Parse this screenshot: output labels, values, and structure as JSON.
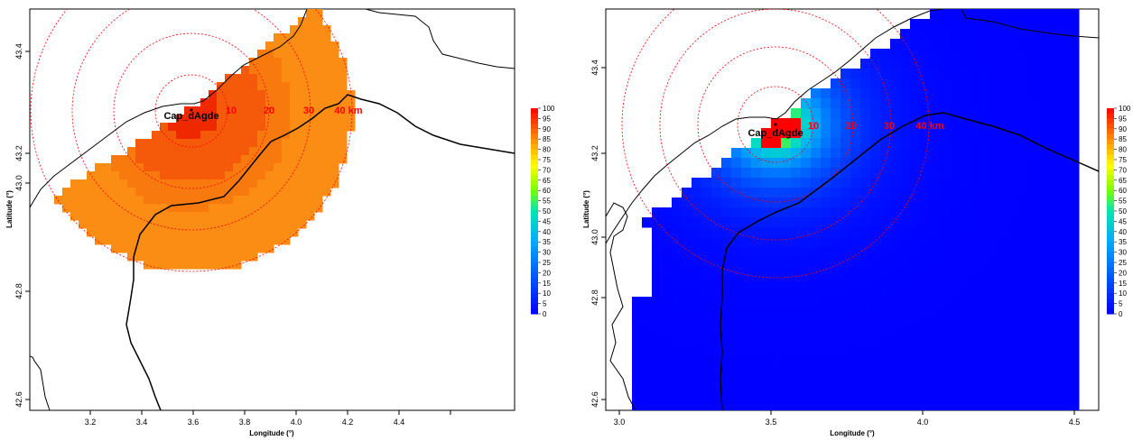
{
  "panels": [
    {
      "id": "left",
      "xlabel": "Longitude (°)",
      "ylabel": "Latitude (°)",
      "xticks": [
        "3.2",
        "3.4",
        "3.6",
        "3.8",
        "4.0",
        "4.2",
        "4.4"
      ],
      "yticks": [
        "42.6",
        "42.8",
        "43.0",
        "43.2",
        "43.4"
      ],
      "site_label": "Cap_dAgde",
      "ring_labels": [
        "10",
        "20",
        "30",
        "40 km"
      ],
      "legend_ticks": [
        "100",
        "95",
        "90",
        "85",
        "80",
        "75",
        "70",
        "65",
        "60",
        "55",
        "50",
        "45",
        "40",
        "35",
        "30",
        "25",
        "20",
        "15",
        "10",
        "5",
        "0"
      ]
    },
    {
      "id": "right",
      "xlabel": "Longitude (°)",
      "ylabel": "Latitude (°)",
      "xticks": [
        "3.0",
        "3.5",
        "4.0",
        "4.5"
      ],
      "yticks": [
        "42.6",
        "42.8",
        "43.0",
        "43.2",
        "43.4"
      ],
      "site_label": "Cap_dAgde",
      "ring_labels": [
        "10",
        "20",
        "30",
        "40 km"
      ],
      "legend_ticks": [
        "100",
        "95",
        "90",
        "85",
        "80",
        "75",
        "70",
        "65",
        "60",
        "55",
        "50",
        "45",
        "40",
        "35",
        "30",
        "25",
        "20",
        "15",
        "10",
        "5",
        "0"
      ]
    }
  ],
  "colors": {
    "ring": "#ff0000",
    "coast": "#000000",
    "orange": "#ff8c00",
    "blue": "#0000ff"
  }
}
